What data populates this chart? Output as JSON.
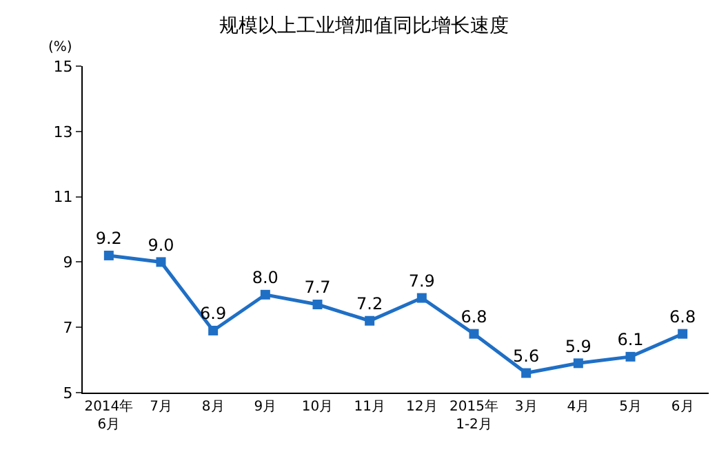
{
  "chart_data": {
    "type": "line",
    "title": "规模以上工业增加值同比增长速度",
    "ylabel": "(%)",
    "categories": [
      "2014年\n6月",
      "7月",
      "8月",
      "9月",
      "10月",
      "11月",
      "12月",
      "2015年\n1-2月",
      "3月",
      "4月",
      "5月",
      "6月"
    ],
    "series": [
      {
        "color": "#1f6fc5",
        "values": [
          9.2,
          9.0,
          6.9,
          8.0,
          7.7,
          7.2,
          7.9,
          6.8,
          5.6,
          5.9,
          6.1,
          6.8
        ],
        "value_labels": [
          "9.2",
          "9.0",
          "6.9",
          "8.0",
          "7.7",
          "7.2",
          "7.9",
          "6.8",
          "5.6",
          "5.9",
          "6.1",
          "6.8"
        ]
      }
    ],
    "ylim": [
      5,
      15
    ],
    "yticks": [
      5,
      7,
      9,
      11,
      13,
      15
    ],
    "grid": false,
    "legend": false,
    "marker": "square",
    "line_style": "solid"
  }
}
